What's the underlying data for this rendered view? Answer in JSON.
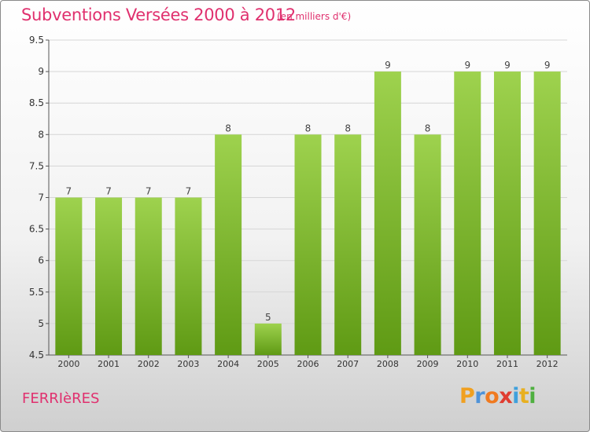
{
  "header": {
    "title": "Subventions Versées 2000 à 2012",
    "unit_note": "(en milliers d'€)"
  },
  "footer": {
    "city": "FERRIèRES",
    "logo_text": "Proxiti"
  },
  "colors": {
    "title": "#e0306e",
    "bar_top": "#9ed24e",
    "bar_bottom": "#5f9a14",
    "grid": "#d6d6d6",
    "axis": "#555555",
    "logo": [
      "#f0a020",
      "#4f93d8",
      "#f07a20",
      "#e03c30",
      "#3fa0dc",
      "#e8b020",
      "#4fb040"
    ]
  },
  "chart_data": {
    "type": "bar",
    "title": "Subventions Versées 2000 à 2012",
    "subtitle": "(en milliers d'€)",
    "xlabel": "",
    "ylabel": "",
    "categories": [
      "2000",
      "2001",
      "2002",
      "2003",
      "2004",
      "2005",
      "2006",
      "2007",
      "2008",
      "2009",
      "2010",
      "2011",
      "2012"
    ],
    "values": [
      7,
      7,
      7,
      7,
      8,
      5,
      8,
      8,
      9,
      8,
      9,
      9,
      9
    ],
    "data_labels": [
      "7",
      "7",
      "7",
      "7",
      "8",
      "5",
      "8",
      "8",
      "9",
      "8",
      "9",
      "9",
      "9"
    ],
    "ylim": [
      4.5,
      9.5
    ],
    "yticks": [
      "4.5",
      "5",
      "5.5",
      "6",
      "6.5",
      "7",
      "7.5",
      "8",
      "8.5",
      "9",
      "9.5"
    ],
    "grid": "horizontal",
    "legend": "none"
  }
}
